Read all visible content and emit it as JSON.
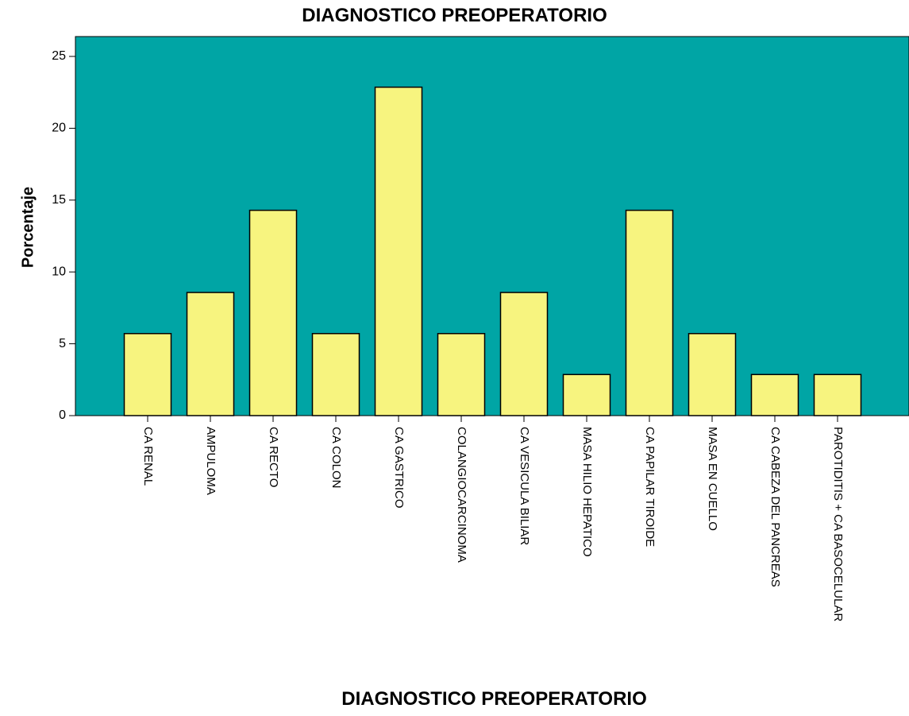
{
  "chart_data": {
    "type": "bar",
    "title": "DIAGNOSTICO PREOPERATORIO",
    "xlabel": "DIAGNOSTICO PREOPERATORIO",
    "ylabel": "Porcentaje",
    "ylim": [
      0,
      26
    ],
    "yticks": [
      0,
      5,
      10,
      15,
      20,
      25
    ],
    "grid": false,
    "categories": [
      "CA RENAL",
      "AMPULOMA",
      "CA RECTO",
      "CA COLON",
      "CA GASTRICO",
      "COLANGIOCARCINOMA",
      "CA VESICULA BILIAR",
      "MASA HILIO HEPATICO",
      "CA PAPILAR TIROIDE",
      "MASA EN CUELLO",
      "CA CABEZA DEL PANCREAS",
      "PAROTIDITIS + CA BASOCELULAR"
    ],
    "values": [
      5.71,
      8.57,
      14.29,
      5.71,
      22.86,
      5.71,
      8.57,
      2.86,
      14.29,
      5.71,
      2.86,
      2.86
    ],
    "colors": {
      "plot_background": "#00a5a5",
      "bar_fill": "#f7f47f",
      "bar_stroke": "#000000"
    }
  }
}
